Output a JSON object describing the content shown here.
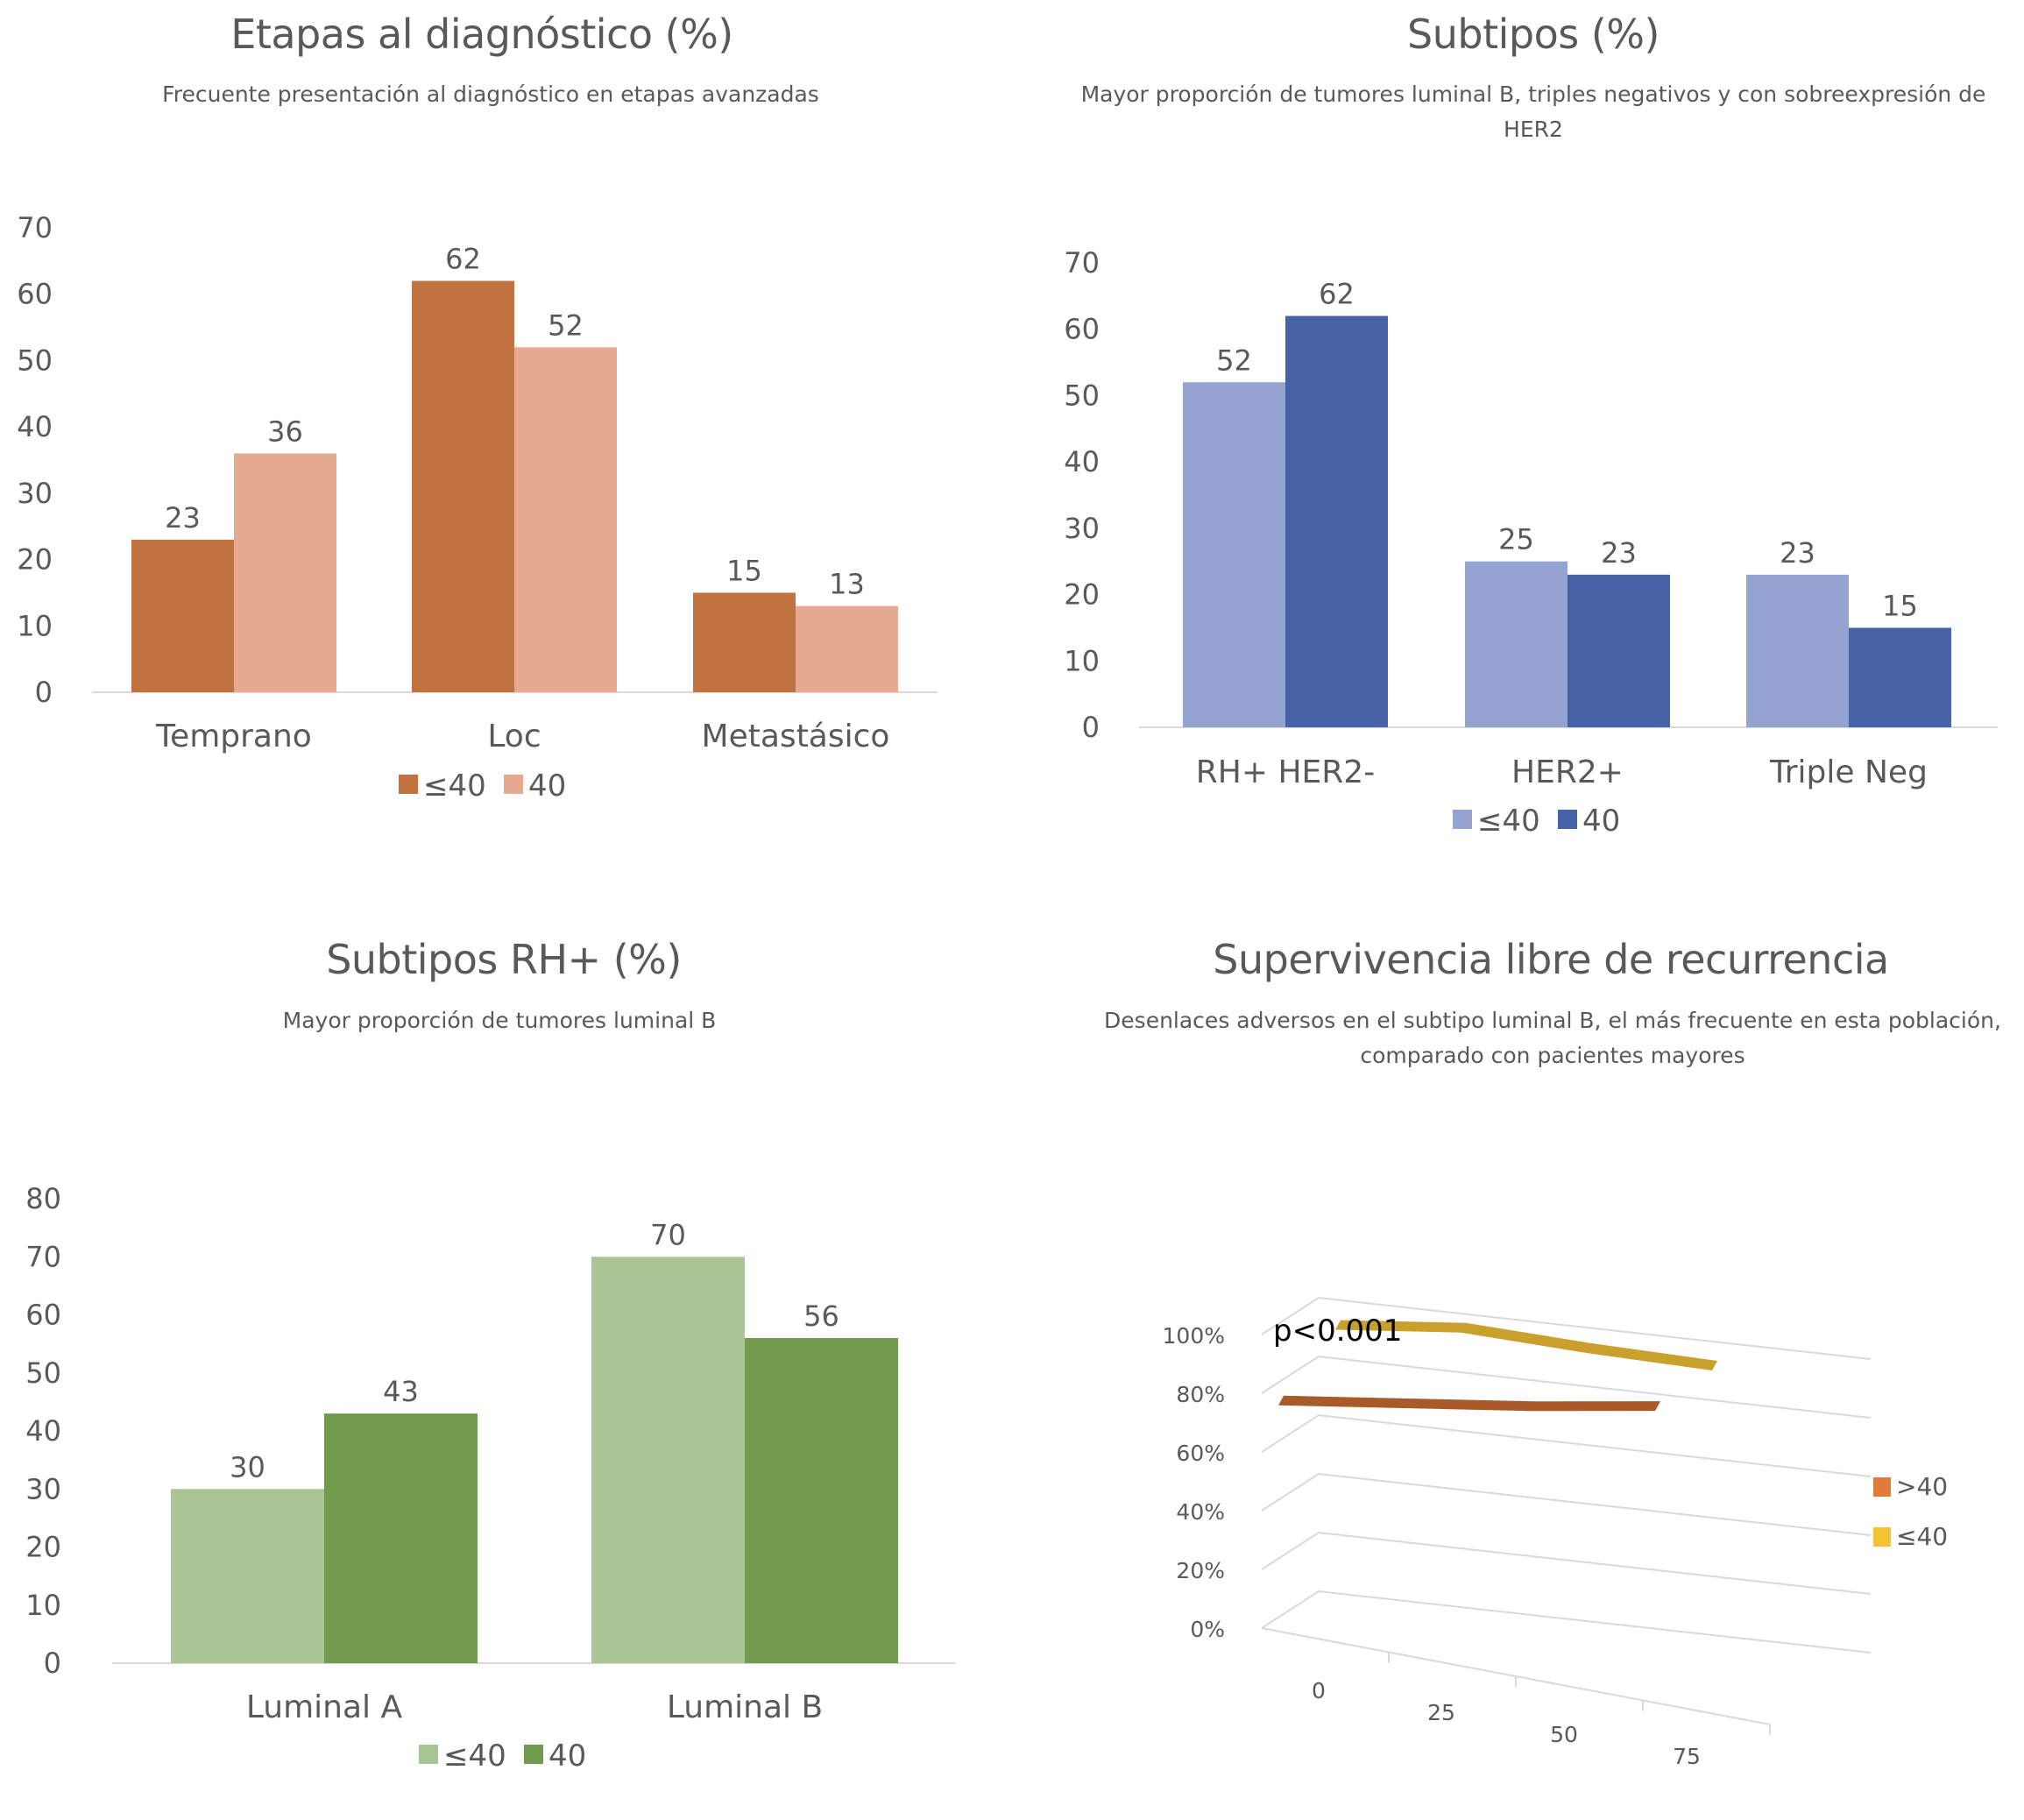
{
  "chart_data": [
    {
      "id": "etapas",
      "type": "bar",
      "title": "Etapas al diagnóstico (%)",
      "subtitle": "Frecuente presentación al diagnóstico en etapas avanzadas",
      "categories": [
        "Temprano",
        "Loc",
        "Metastásico"
      ],
      "series": [
        {
          "name": "≤40",
          "values": [
            23,
            62,
            15
          ],
          "color": "#C1723E"
        },
        {
          "name": "40",
          "values": [
            36,
            52,
            13
          ],
          "color": "#E5AA90"
        }
      ],
      "yticks": [
        0,
        10,
        20,
        30,
        40,
        50,
        60,
        70
      ],
      "ylim": [
        0,
        70
      ],
      "xlabel": "",
      "ylabel": "",
      "grid": false,
      "data_labels": true,
      "legend": "bottom"
    },
    {
      "id": "subtipos",
      "type": "bar",
      "title": "Subtipos (%)",
      "subtitle_lines": [
        "Mayor proporción de tumores luminal B, triples negativos y con sobreexpresión de",
        "HER2"
      ],
      "categories": [
        "RH+ HER2-",
        "HER2+",
        "Triple Neg"
      ],
      "series": [
        {
          "name": "≤40",
          "values": [
            52,
            25,
            23
          ],
          "color": "#95A3D0"
        },
        {
          "name": "40",
          "values": [
            62,
            23,
            15
          ],
          "color": "#4563A6"
        }
      ],
      "yticks": [
        0,
        10,
        20,
        30,
        40,
        50,
        60,
        70
      ],
      "ylim": [
        0,
        70
      ],
      "xlabel": "",
      "ylabel": "",
      "grid": false,
      "data_labels": true,
      "legend": "bottom"
    },
    {
      "id": "subtipos-rh",
      "type": "bar",
      "title": "Subtipos RH+ (%)",
      "subtitle": "Mayor proporción de tumores luminal B",
      "categories": [
        "Luminal A",
        "Luminal B"
      ],
      "series": [
        {
          "name": "≤40",
          "values": [
            30,
            70
          ],
          "color": "#A9C495"
        },
        {
          "name": "40",
          "values": [
            43,
            56
          ],
          "color": "#719A4D"
        }
      ],
      "yticks": [
        0,
        10,
        20,
        30,
        40,
        50,
        60,
        70,
        80
      ],
      "ylim": [
        0,
        80
      ],
      "xlabel": "",
      "ylabel": "",
      "grid": false,
      "data_labels": true,
      "legend": "bottom"
    },
    {
      "id": "supervivencia",
      "type": "line",
      "title": "Supervivencia libre de recurrencia",
      "subtitle_lines": [
        "Desenlaces adversos en el subtipo luminal B, el más frecuente en esta población,",
        "comparado con pacientes mayores"
      ],
      "annotation": "p<0.001",
      "x": [
        0,
        25,
        50,
        75
      ],
      "xticks": [
        "0",
        "25",
        "50",
        "75"
      ],
      "yticks": [
        "0%",
        "20%",
        "40%",
        "60%",
        "80%",
        "100%"
      ],
      "ylim": [
        0,
        100
      ],
      "series": [
        {
          "name": ">40",
          "values": [
            72,
            79,
            86,
            94
          ],
          "color": "#A85A2A",
          "legend_color": "#E07B39"
        },
        {
          "name": "≤40",
          "values": [
            90,
            97,
            98,
            100
          ],
          "color": "#C9A02C",
          "legend_color": "#F2C232"
        }
      ],
      "legend": "right",
      "style": "3d"
    }
  ]
}
